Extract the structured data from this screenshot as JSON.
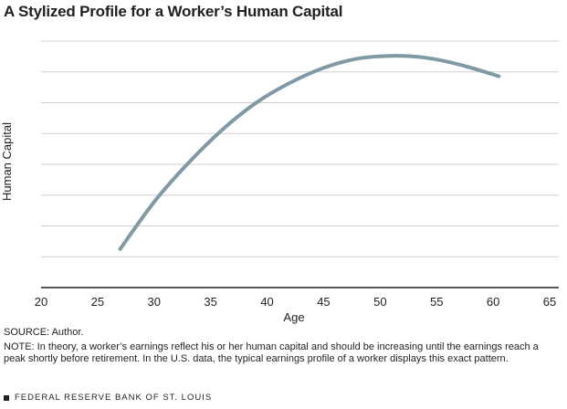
{
  "header": {
    "title": "A Stylized Profile for a Worker’s Human Capital"
  },
  "chart_data": {
    "type": "line",
    "title": "A Stylized Profile for a Worker’s Human Capital",
    "xlabel": "Age",
    "ylabel": "Human Capital",
    "xlim": [
      20,
      65
    ],
    "ylim": [
      0,
      8
    ],
    "xticks": [
      "20",
      "25",
      "30",
      "35",
      "40",
      "45",
      "50",
      "55",
      "60",
      "65"
    ],
    "y_gridlines": 8,
    "grid": true,
    "legend": "none",
    "series": [
      {
        "color": "#7f9aa5",
        "x": [
          27,
          30,
          33,
          36,
          39,
          42,
          45,
          48,
          51,
          54,
          57,
          60.5
        ],
        "y": [
          1.25,
          2.78,
          4.03,
          5.11,
          5.99,
          6.64,
          7.13,
          7.43,
          7.52,
          7.46,
          7.24,
          6.86
        ]
      }
    ]
  },
  "source": "SOURCE: Author.",
  "note": "NOTE: In theory, a worker’s earnings reflect his or her human capital and should be increasing until the earnings reach a peak shortly before retirement. In the U.S. data, the typical earnings profile of a worker displays this exact pattern.",
  "footer": "FEDERAL RESERVE BANK OF ST. LOUIS"
}
